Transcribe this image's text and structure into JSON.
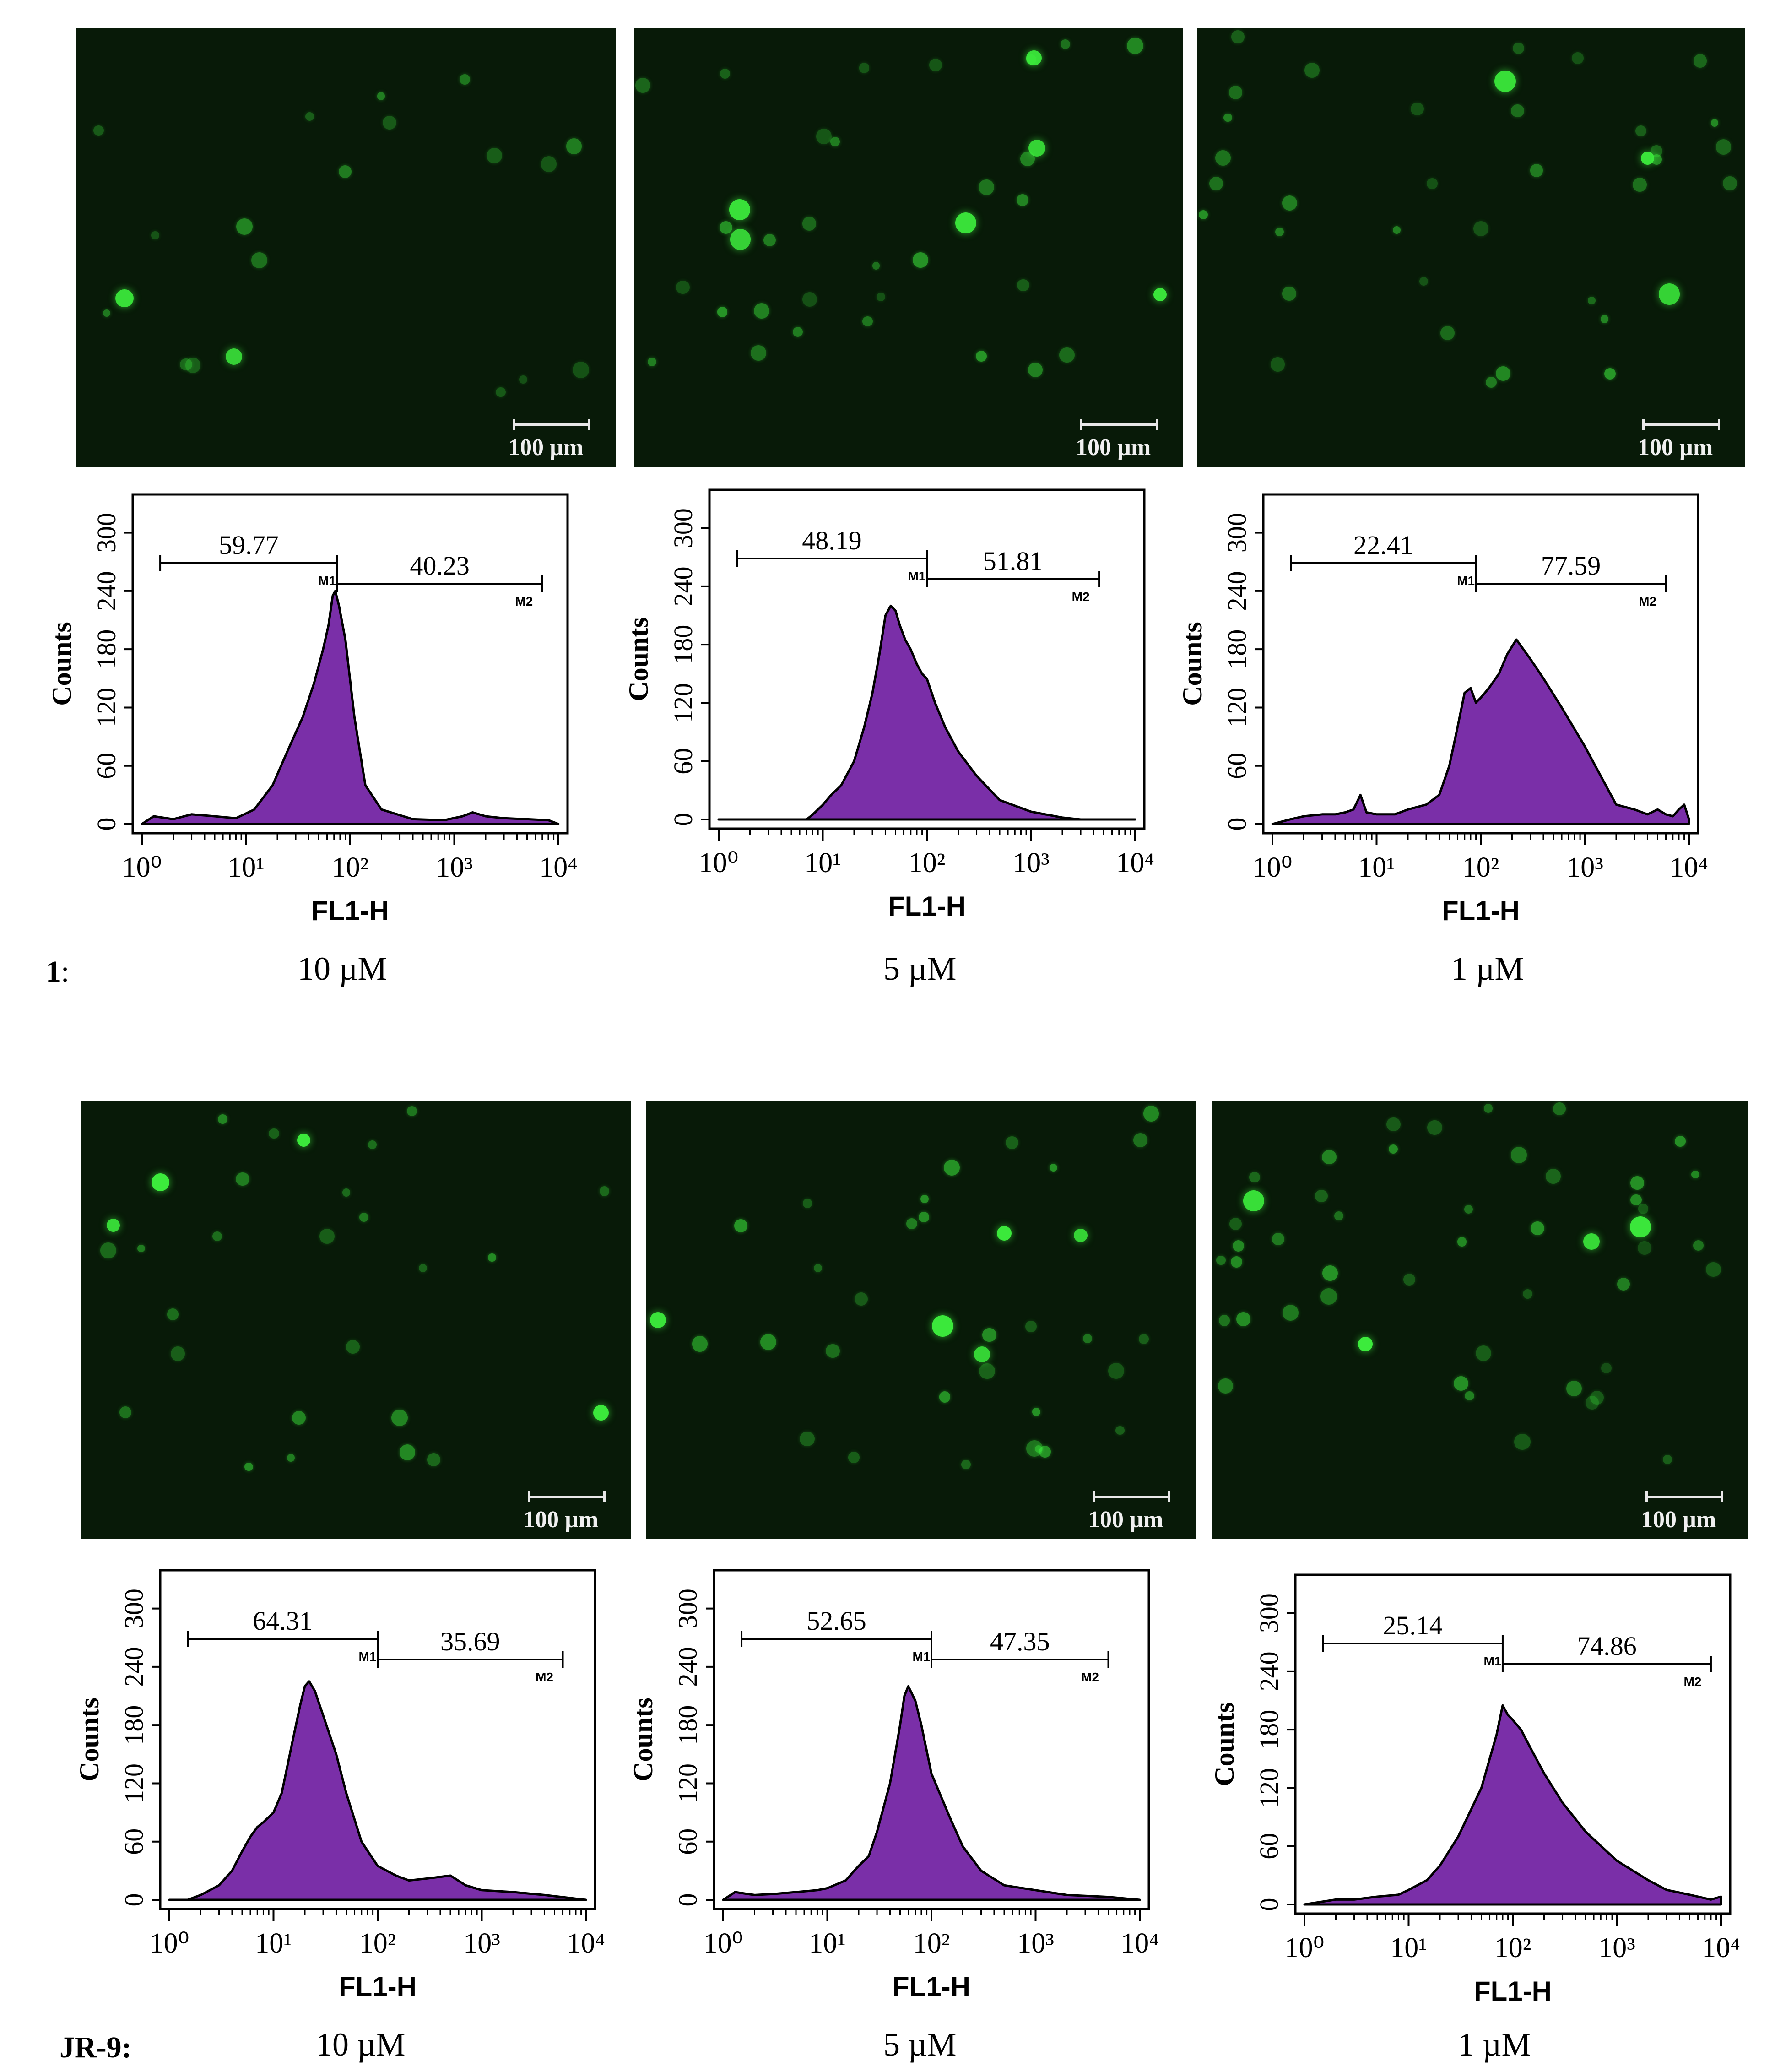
{
  "scale_bar_label": "100 µm",
  "colors": {
    "histogram_fill": "#7a2fa8",
    "histogram_stroke": "#000000",
    "fluorescence": "#2ee62e",
    "micrograph_bg": "#081a08"
  },
  "rows": [
    {
      "prefix": "1",
      "prefix_suffix": ":",
      "concentrations": [
        "10 µM",
        "5 µM",
        "1 µM"
      ]
    },
    {
      "prefix": "JR-9",
      "prefix_suffix": ":",
      "concentrations": [
        "10 µM",
        "5 µM",
        "1 µM"
      ]
    }
  ],
  "chart_data": [
    {
      "type": "area",
      "row": 1,
      "concentration": "10 µM",
      "xlabel": "FL1-H",
      "ylabel": "Counts",
      "xscale": "log",
      "xlim": [
        1,
        10000
      ],
      "ylim": [
        0,
        330
      ],
      "yticks": [
        0,
        60,
        120,
        180,
        240,
        300
      ],
      "xticks": [
        "10⁰",
        "10¹",
        "10²",
        "10³",
        "10⁴"
      ],
      "gates": [
        {
          "name": "M1",
          "value": "59.77",
          "from": 1.5,
          "to": 75
        },
        {
          "name": "M2",
          "value": "40.23",
          "to": 7000
        }
      ],
      "x": [
        1,
        1.3,
        2,
        3,
        5,
        8,
        12,
        18,
        25,
        35,
        45,
        55,
        62,
        68,
        72,
        78,
        90,
        110,
        140,
        200,
        400,
        800,
        1200,
        1500,
        2000,
        3000,
        5000,
        8000,
        10000
      ],
      "y": [
        0,
        8,
        5,
        10,
        8,
        6,
        15,
        40,
        75,
        110,
        145,
        180,
        205,
        235,
        240,
        225,
        190,
        110,
        40,
        15,
        5,
        4,
        8,
        12,
        8,
        6,
        5,
        4,
        0
      ]
    },
    {
      "type": "area",
      "row": 1,
      "concentration": "5 µM",
      "xlabel": "FL1-H",
      "ylabel": "Counts",
      "xscale": "log",
      "xlim": [
        1,
        10000
      ],
      "ylim": [
        0,
        330
      ],
      "yticks": [
        0,
        60,
        120,
        180,
        240,
        300
      ],
      "xticks": [
        "10⁰",
        "10¹",
        "10²",
        "10³",
        "10⁴"
      ],
      "gates": [
        {
          "name": "M1",
          "value": "48.19",
          "from": 1.5,
          "to": 100
        },
        {
          "name": "M2",
          "value": "51.81",
          "to": 4500
        }
      ],
      "x": [
        1,
        5,
        7,
        8,
        10,
        12,
        15,
        20,
        25,
        30,
        35,
        40,
        45,
        50,
        55,
        62,
        70,
        80,
        90,
        100,
        120,
        150,
        200,
        300,
        500,
        1000,
        2000,
        3000,
        10000
      ],
      "y": [
        0,
        0,
        0,
        5,
        15,
        25,
        35,
        60,
        95,
        130,
        170,
        210,
        220,
        215,
        200,
        185,
        175,
        160,
        150,
        145,
        120,
        95,
        70,
        45,
        20,
        8,
        2,
        0,
        0
      ]
    },
    {
      "type": "area",
      "row": 1,
      "concentration": "1 µM",
      "xlabel": "FL1-H",
      "ylabel": "Counts",
      "xscale": "log",
      "xlim": [
        1,
        10000
      ],
      "ylim": [
        0,
        330
      ],
      "yticks": [
        0,
        60,
        120,
        180,
        240,
        300
      ],
      "xticks": [
        "10⁰",
        "10¹",
        "10²",
        "10³",
        "10⁴"
      ],
      "gates": [
        {
          "name": "M1",
          "value": "22.41",
          "from": 1.5,
          "to": 90
        },
        {
          "name": "M2",
          "value": "77.59",
          "to": 6000
        }
      ],
      "x": [
        1,
        1.5,
        2,
        3,
        4,
        5,
        6,
        7,
        8,
        10,
        15,
        20,
        30,
        40,
        50,
        60,
        70,
        80,
        90,
        100,
        120,
        150,
        180,
        220,
        300,
        400,
        600,
        1000,
        2000,
        3000,
        4000,
        5000,
        6000,
        7000,
        8000,
        9000,
        10000
      ],
      "y": [
        0,
        5,
        8,
        10,
        10,
        12,
        15,
        30,
        12,
        10,
        10,
        15,
        20,
        30,
        60,
        100,
        135,
        140,
        125,
        130,
        140,
        155,
        175,
        190,
        170,
        150,
        120,
        80,
        20,
        15,
        10,
        15,
        10,
        8,
        15,
        20,
        5
      ]
    },
    {
      "type": "area",
      "row": 2,
      "concentration": "10 µM",
      "xlabel": "FL1-H",
      "ylabel": "Counts",
      "xscale": "log",
      "xlim": [
        1,
        10000
      ],
      "ylim": [
        0,
        330
      ],
      "yticks": [
        0,
        60,
        120,
        180,
        240,
        300
      ],
      "xticks": [
        "10⁰",
        "10¹",
        "10²",
        "10³",
        "10⁴"
      ],
      "gates": [
        {
          "name": "M1",
          "value": "64.31",
          "from": 1.5,
          "to": 100
        },
        {
          "name": "M2",
          "value": "35.69",
          "to": 6000
        }
      ],
      "x": [
        1,
        1.5,
        2,
        3,
        4,
        5,
        6,
        7,
        8,
        10,
        12,
        15,
        18,
        20,
        22,
        25,
        30,
        40,
        50,
        70,
        100,
        150,
        200,
        300,
        500,
        700,
        1000,
        2000,
        4000,
        10000
      ],
      "y": [
        0,
        0,
        5,
        15,
        30,
        50,
        65,
        75,
        80,
        90,
        110,
        160,
        200,
        220,
        225,
        215,
        190,
        150,
        110,
        60,
        35,
        25,
        20,
        22,
        25,
        15,
        10,
        8,
        5,
        0
      ]
    },
    {
      "type": "area",
      "row": 2,
      "concentration": "5 µM",
      "xlabel": "FL1-H",
      "ylabel": "Counts",
      "xscale": "log",
      "xlim": [
        1,
        10000
      ],
      "ylim": [
        0,
        330
      ],
      "yticks": [
        0,
        60,
        120,
        180,
        240,
        300
      ],
      "xticks": [
        "10⁰",
        "10¹",
        "10²",
        "10³",
        "10⁴"
      ],
      "gates": [
        {
          "name": "M1",
          "value": "52.65",
          "from": 1.5,
          "to": 100
        },
        {
          "name": "M2",
          "value": "47.35",
          "to": 5000
        }
      ],
      "x": [
        1,
        1.3,
        2,
        3,
        5,
        8,
        10,
        15,
        20,
        25,
        30,
        40,
        50,
        55,
        60,
        70,
        80,
        100,
        150,
        200,
        300,
        500,
        1000,
        2000,
        5000,
        10000
      ],
      "y": [
        0,
        8,
        5,
        6,
        8,
        10,
        12,
        20,
        35,
        45,
        70,
        120,
        180,
        210,
        220,
        205,
        180,
        130,
        85,
        55,
        30,
        15,
        10,
        5,
        3,
        0
      ]
    },
    {
      "type": "area",
      "row": 2,
      "concentration": "1 µM",
      "xlabel": "FL1-H",
      "ylabel": "Counts",
      "xscale": "log",
      "xlim": [
        1,
        10000
      ],
      "ylim": [
        0,
        330
      ],
      "yticks": [
        0,
        60,
        120,
        180,
        240,
        300
      ],
      "xticks": [
        "10⁰",
        "10¹",
        "10²",
        "10³",
        "10⁴"
      ],
      "gates": [
        {
          "name": "M1",
          "value": "25.14",
          "from": 1.5,
          "to": 80
        },
        {
          "name": "M2",
          "value": "74.86",
          "to": 8000
        }
      ],
      "x": [
        1,
        2,
        3,
        5,
        8,
        10,
        15,
        20,
        30,
        50,
        70,
        80,
        90,
        100,
        120,
        150,
        200,
        300,
        500,
        1000,
        2000,
        3000,
        5000,
        8000,
        10000
      ],
      "y": [
        0,
        5,
        5,
        8,
        10,
        15,
        25,
        40,
        70,
        120,
        175,
        205,
        195,
        190,
        180,
        160,
        135,
        105,
        75,
        45,
        25,
        15,
        10,
        5,
        8
      ]
    }
  ]
}
